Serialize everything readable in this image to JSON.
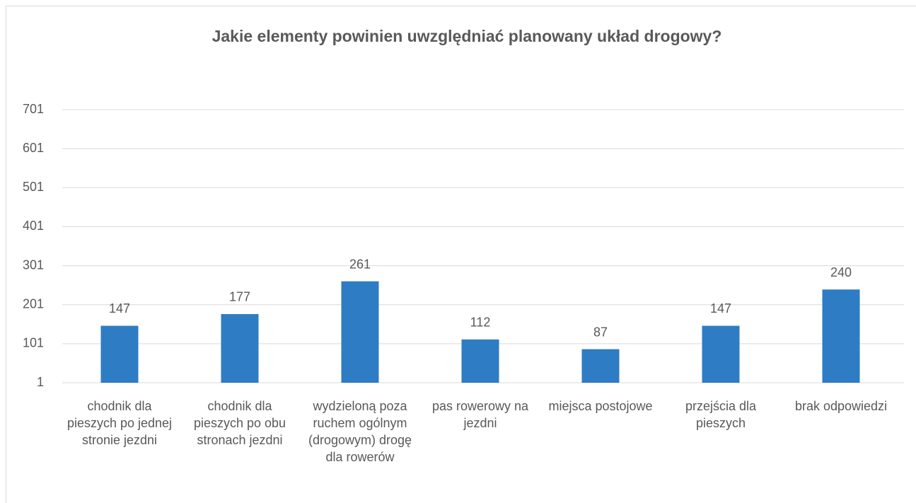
{
  "chart_data": {
    "type": "bar",
    "title": "Jakie elementy powinien uwzględniać planowany układ drogowy?",
    "categories": [
      "chodnik dla pieszych po jednej stronie jezdni",
      "chodnik dla pieszych po obu stronach jezdni",
      "wydzieloną poza ruchem ogólnym (drogowym) drogę dla rowerów",
      "pas rowerowy na jezdni",
      "miejsca postojowe",
      "przejścia dla pieszych",
      "brak odpowiedzi"
    ],
    "values": [
      147,
      177,
      261,
      112,
      87,
      147,
      240
    ],
    "color": "#2e7cc4",
    "ylim": [
      1,
      701
    ],
    "yticks": [
      1,
      101,
      201,
      301,
      401,
      501,
      601,
      701
    ],
    "grid": true
  }
}
